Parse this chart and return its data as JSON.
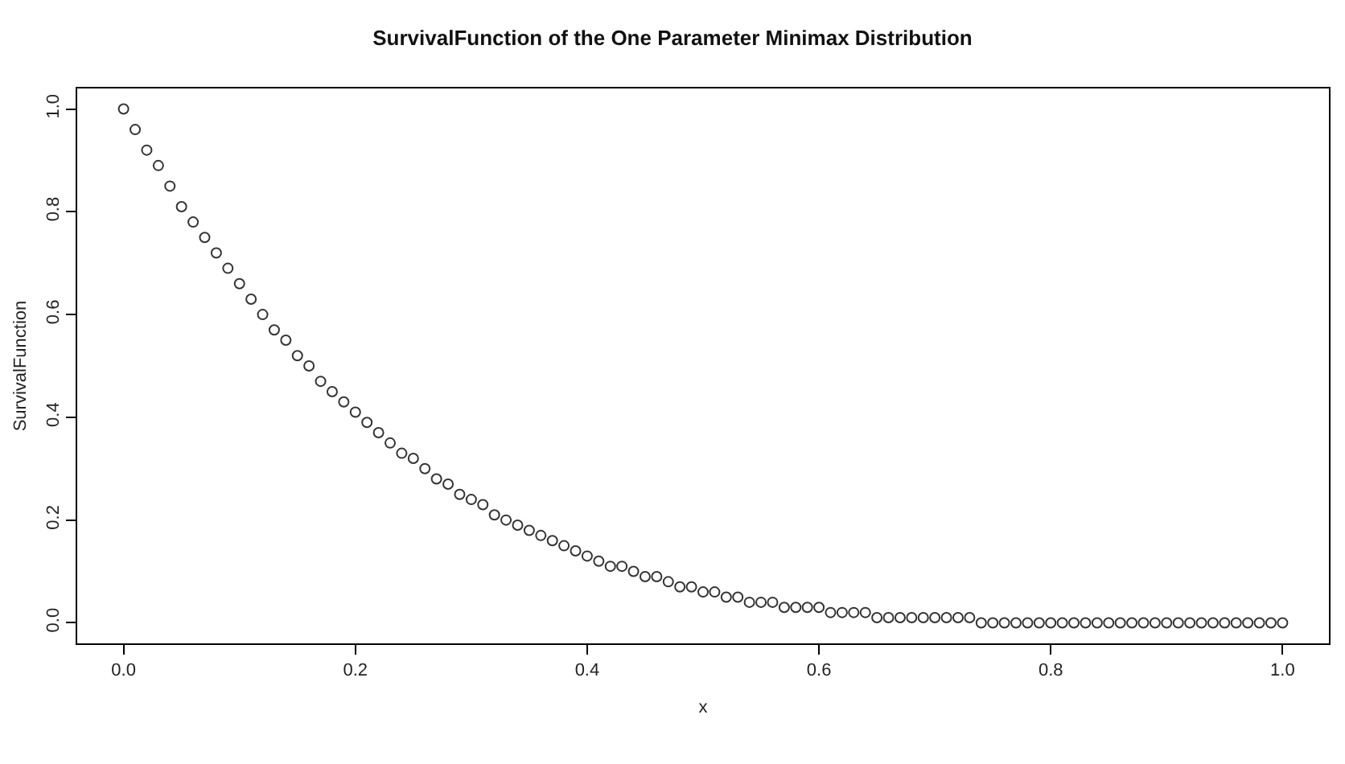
{
  "chart_data": {
    "type": "scatter",
    "title": "SurvivalFunction of the One Parameter Minimax Distribution",
    "xlabel": "x",
    "ylabel": "SurvivalFunction",
    "x": [
      0,
      0.01,
      0.02,
      0.03,
      0.04,
      0.05,
      0.06,
      0.07,
      0.08,
      0.09,
      0.1,
      0.11,
      0.12,
      0.13,
      0.14,
      0.15,
      0.16,
      0.17,
      0.18,
      0.19,
      0.2,
      0.21,
      0.22,
      0.23,
      0.24,
      0.25,
      0.26,
      0.27,
      0.28,
      0.29,
      0.3,
      0.31,
      0.32,
      0.33,
      0.34,
      0.35,
      0.36,
      0.37,
      0.38,
      0.39,
      0.4,
      0.41,
      0.42,
      0.43,
      0.44,
      0.45,
      0.46,
      0.47,
      0.48,
      0.49,
      0.5,
      0.51,
      0.52,
      0.53,
      0.54,
      0.55,
      0.56,
      0.57,
      0.58,
      0.59,
      0.6,
      0.61,
      0.62,
      0.63,
      0.64,
      0.65,
      0.66,
      0.67,
      0.68,
      0.69,
      0.7,
      0.71,
      0.72,
      0.73,
      0.74,
      0.75,
      0.76,
      0.77,
      0.78,
      0.79,
      0.8,
      0.81,
      0.82,
      0.83,
      0.84,
      0.85,
      0.86,
      0.87,
      0.88,
      0.89,
      0.9,
      0.91,
      0.92,
      0.93,
      0.94,
      0.95,
      0.96,
      0.97,
      0.98,
      0.99,
      1
    ],
    "values": [
      1,
      0.96,
      0.92,
      0.89,
      0.85,
      0.81,
      0.78,
      0.75,
      0.72,
      0.69,
      0.66,
      0.63,
      0.6,
      0.57,
      0.55,
      0.52,
      0.5,
      0.47,
      0.45,
      0.43,
      0.41,
      0.39,
      0.37,
      0.35,
      0.33,
      0.32,
      0.3,
      0.28,
      0.27,
      0.25,
      0.24,
      0.23,
      0.21,
      0.2,
      0.19,
      0.18,
      0.17,
      0.16,
      0.15,
      0.14,
      0.13,
      0.12,
      0.11,
      0.11,
      0.1,
      0.09,
      0.09,
      0.08,
      0.07,
      0.07,
      0.06,
      0.06,
      0.05,
      0.05,
      0.04,
      0.04,
      0.04,
      0.03,
      0.03,
      0.03,
      0.03,
      0.02,
      0.02,
      0.02,
      0.02,
      0.01,
      0.01,
      0.01,
      0.01,
      0.01,
      0.01,
      0.01,
      0.01,
      0.01,
      0,
      0,
      0,
      0,
      0,
      0,
      0,
      0,
      0,
      0,
      0,
      0,
      0,
      0,
      0,
      0,
      0,
      0,
      0,
      0,
      0,
      0,
      0,
      0,
      0,
      0,
      0
    ],
    "color": "#333333",
    "marker": "circle",
    "xlim": [
      -0.04,
      1.04
    ],
    "ylim": [
      -0.04,
      1.04
    ],
    "xticks": [
      {
        "value": 0,
        "label": "0.0"
      },
      0.2,
      0.4,
      0.6,
      0.8,
      {
        "value": 1,
        "label": "1.0"
      }
    ],
    "yticks": [
      {
        "value": 0,
        "label": "0.0"
      },
      0.2,
      0.4,
      0.6,
      0.8,
      {
        "value": 1,
        "label": "1.0"
      }
    ]
  }
}
